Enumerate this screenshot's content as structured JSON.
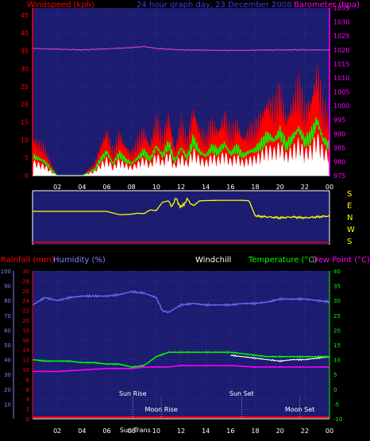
{
  "header": {
    "wind_label": "Windspeed (kph)",
    "date_label": "24 hour graph day,  23 December 2008",
    "baro_label": "Barometer (hpa)"
  },
  "dir_letters": [
    "S",
    "E",
    "N",
    "W",
    "S"
  ],
  "lower_header": {
    "rain": "Rainfall (mm)",
    "humidity": "Humidity (%)",
    "windchill": "Windchill",
    "temperature": "Temperature (°C)",
    "dewpoint": "Dew Point (°C)"
  },
  "events": {
    "sun_rise": "Sun Rise",
    "sun_set": "Sun Set",
    "moon_rise": "Moon Rise",
    "moon_set": "Moon Set",
    "sun_trans": "Sun Trans"
  },
  "colors": {
    "plot_bg": "#1c1c70",
    "wind_gust": "#ff0000",
    "wind_avg": "#00ff00",
    "wind_white": "#ffffff",
    "barometer": "#d040d0",
    "direction": "#ffff00",
    "humidity": "#7070ff",
    "temperature": "#00ff00",
    "dewpoint": "#ff00ff",
    "rain": "#ff0000"
  },
  "chart_data": [
    {
      "type": "area",
      "x_ticks": [
        "02",
        "04",
        "06",
        "08",
        "10",
        "12",
        "14",
        "16",
        "18",
        "20",
        "22",
        "00"
      ],
      "wind_axis": {
        "ticks": [
          0,
          5,
          10,
          15,
          20,
          25,
          30,
          35,
          40,
          45
        ],
        "ylim": [
          0,
          47
        ]
      },
      "baro_axis": {
        "ticks": [
          975,
          980,
          985,
          990,
          995,
          1000,
          1005,
          1010,
          1015,
          1020,
          1025,
          1030,
          1035
        ],
        "ylim": [
          975,
          1035
        ]
      },
      "barometer": {
        "hours": [
          0,
          4,
          8,
          9,
          10,
          12,
          16,
          20,
          24
        ],
        "values": [
          1020.5,
          1020,
          1020.8,
          1021.2,
          1020.5,
          1020,
          1019.8,
          1020,
          1020
        ]
      },
      "wind_gust": {
        "hours": [
          0,
          1,
          1.5,
          2,
          3,
          4,
          5,
          5.5,
          6,
          6.5,
          7,
          7.5,
          8,
          8.5,
          9,
          9.5,
          10,
          10.5,
          11,
          11.5,
          12,
          12.5,
          13,
          13.5,
          14,
          14.5,
          15,
          15.5,
          16,
          16.5,
          17,
          17.5,
          18,
          18.5,
          19,
          19.5,
          20,
          20.5,
          21,
          21.5,
          22,
          22.5,
          23,
          23.5,
          24
        ],
        "values": [
          10,
          7,
          3,
          0,
          0,
          0,
          3,
          8,
          12,
          6,
          11,
          8,
          6,
          9,
          12,
          8,
          15,
          10,
          16,
          7,
          14,
          9,
          18,
          12,
          10,
          14,
          12,
          16,
          11,
          14,
          10,
          12,
          13,
          16,
          20,
          18,
          22,
          15,
          19,
          24,
          17,
          20,
          28,
          18,
          15
        ]
      }
    },
    {
      "type": "line",
      "name": "",
      "hours": [
        0,
        3,
        6,
        7,
        7.2,
        8,
        8.5,
        9,
        9.3,
        9.5,
        10,
        10.5,
        11,
        11.2,
        11.6,
        12,
        12.5,
        13,
        13.5,
        15,
        16,
        17,
        17.5,
        18,
        19,
        20,
        21,
        22,
        23,
        24
      ],
      "values": [
        0.62,
        0.62,
        0.62,
        0.55,
        0.55,
        0.56,
        0.58,
        0.57,
        0.62,
        0.65,
        0.64,
        0.82,
        0.85,
        0.72,
        0.9,
        0.7,
        0.88,
        0.74,
        0.85,
        0.86,
        0.86,
        0.86,
        0.85,
        0.52,
        0.5,
        0.48,
        0.5,
        0.48,
        0.5,
        0.52
      ]
    },
    {
      "type": "line",
      "x_ticks": [
        "02",
        "04",
        "06",
        "08",
        "10",
        "12",
        "14",
        "16",
        "18",
        "20",
        "22",
        "00"
      ],
      "humidity_axis": {
        "ticks": [
          10,
          20,
          30,
          40,
          50,
          60,
          70,
          80,
          90,
          100
        ],
        "ylim": [
          0,
          100
        ]
      },
      "rain_axis": {
        "ticks": [
          0,
          2,
          4,
          6,
          8,
          10,
          12,
          14,
          16,
          18,
          20,
          22,
          24,
          26,
          28,
          30
        ],
        "ylim": [
          0,
          30
        ]
      },
      "temp_axis": {
        "ticks": [
          -10,
          -5,
          0,
          5,
          10,
          15,
          20,
          25,
          30,
          35,
          40
        ],
        "ylim": [
          -10,
          40
        ]
      },
      "series": [
        {
          "name": "Humidity (%)",
          "hours": [
            0,
            1,
            2,
            3,
            4,
            5,
            6,
            7,
            8,
            9,
            10,
            10.5,
            11,
            12,
            13,
            14,
            15,
            16,
            17,
            18,
            19,
            20,
            21,
            22,
            23,
            24
          ],
          "values": [
            77,
            82,
            80,
            82,
            83,
            83,
            83,
            84,
            86,
            85,
            82,
            73,
            72,
            77,
            78,
            77,
            77,
            77,
            78,
            78,
            79,
            81,
            81,
            81,
            80,
            79
          ]
        },
        {
          "name": "Temperature (°C)",
          "hours": [
            0,
            1,
            2,
            3,
            4,
            5,
            6,
            7,
            8,
            9,
            10,
            11,
            12,
            13,
            14,
            15,
            16,
            17,
            18,
            19,
            20,
            21,
            22,
            23,
            24
          ],
          "values": [
            10,
            9.5,
            9.5,
            9.5,
            9,
            9,
            8.5,
            8.5,
            7.5,
            8,
            11,
            12.5,
            12.5,
            12.5,
            12.5,
            12.5,
            12.5,
            12,
            11.5,
            11,
            11,
            11,
            11,
            11,
            11
          ]
        },
        {
          "name": "Dew Point (°C)",
          "hours": [
            0,
            2,
            4,
            6,
            8,
            9,
            10,
            11,
            12,
            14,
            16,
            18,
            20,
            22,
            24
          ],
          "values": [
            6,
            6,
            6.5,
            7,
            7,
            7.5,
            7.5,
            7.5,
            8,
            8,
            8,
            7.5,
            7.5,
            7.5,
            7.5
          ]
        },
        {
          "name": "Windchill",
          "hours": [
            16,
            17,
            18,
            19,
            20,
            21,
            22,
            23,
            24
          ],
          "values": [
            11.5,
            11,
            10.5,
            10,
            9.5,
            10,
            10,
            10.5,
            11
          ]
        },
        {
          "name": "Rainfall (mm)",
          "hours": [
            0,
            24
          ],
          "values": [
            0,
            0
          ]
        }
      ],
      "event_hours": {
        "sun_rise": 8.1,
        "sun_set": 16.9,
        "moon_rise": 10.4,
        "moon_set": 21.6,
        "sun_trans": 8.3
      }
    }
  ]
}
